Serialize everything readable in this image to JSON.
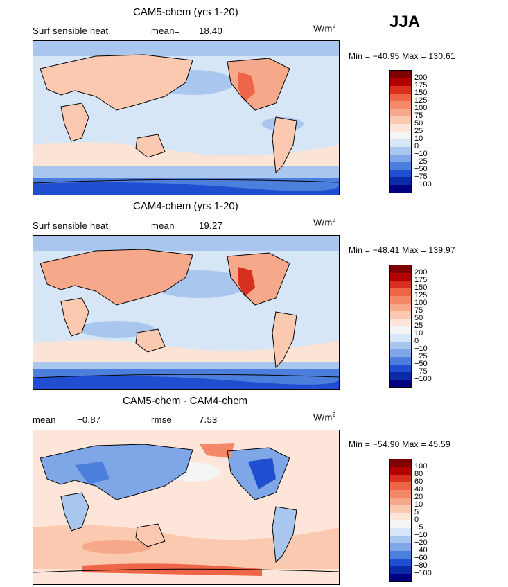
{
  "season": "JJA",
  "panels": [
    {
      "title": "CAM5-chem (yrs 1-20)",
      "left_label": "Surf sensible heat",
      "mean_label": "mean=",
      "mean_value": "18.40",
      "units_base": "W/m",
      "units_exp": "2",
      "min_max": "Min = −40.95  Max = 130.61",
      "colorbar": [
        "200",
        "175",
        "150",
        "125",
        "100",
        "75",
        "50",
        "25",
        "10",
        "0",
        "−10",
        "−25",
        "−50",
        "−75",
        "−100"
      ]
    },
    {
      "title": "CAM4-chem (yrs 1-20)",
      "left_label": "Surf sensible heat",
      "mean_label": "mean=",
      "mean_value": "19.27",
      "units_base": "W/m",
      "units_exp": "2",
      "min_max": "Min = −48.41  Max = 139.97",
      "colorbar": [
        "200",
        "175",
        "150",
        "125",
        "100",
        "75",
        "50",
        "25",
        "10",
        "0",
        "−10",
        "−25",
        "−50",
        "−75",
        "−100"
      ]
    },
    {
      "title": "CAM5-chem - CAM4-chem",
      "left_label": "mean =",
      "mean_value": "−0.87",
      "rmse_label": "rmse =",
      "rmse_value": "7.53",
      "units_base": "W/m",
      "units_exp": "2",
      "min_max": "Min = −54.90  Max =  45.59",
      "colorbar": [
        "100",
        "80",
        "60",
        "40",
        "20",
        "10",
        "5",
        "0",
        "−5",
        "−10",
        "−20",
        "−40",
        "−60",
        "−80",
        "−100"
      ]
    }
  ],
  "colors": {
    "scale": [
      "#7f0000",
      "#b30000",
      "#d7301f",
      "#ef6548",
      "#f4896a",
      "#f6a98a",
      "#fbc9b0",
      "#fde6d9",
      "#f4f4f4",
      "#d6e6f7",
      "#a9c6ef",
      "#7fa6e6",
      "#4c7fdc",
      "#1f4fd0",
      "#0a2aa8",
      "#000080"
    ]
  }
}
